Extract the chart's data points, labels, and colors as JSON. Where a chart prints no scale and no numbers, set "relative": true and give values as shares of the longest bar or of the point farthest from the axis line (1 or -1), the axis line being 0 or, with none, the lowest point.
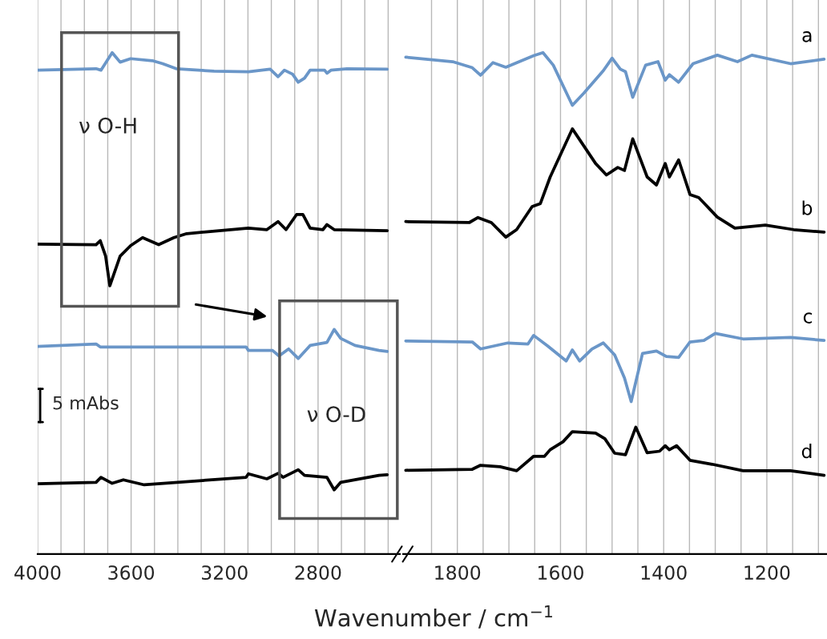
{
  "chart_data": [
    {
      "type": "line",
      "relative": true,
      "tick_labels": "x",
      "grid": "x",
      "xlabel": "Wavenumber / cm$^{−1}$",
      "xlim": [
        4000,
        2450
      ],
      "xticks": [
        4000,
        {
          "value": 3900,
          "label": null
        },
        {
          "value": 3800,
          "label": null
        },
        {
          "value": 3700,
          "label": null
        },
        3600,
        {
          "value": 3500,
          "label": null
        },
        {
          "value": 3400,
          "label": null
        },
        {
          "value": 3300,
          "label": null
        },
        3200,
        {
          "value": 3100,
          "label": null
        },
        {
          "value": 3000,
          "label": null
        },
        {
          "value": 2900,
          "label": null
        },
        2800,
        {
          "value": 2700,
          "label": null
        },
        {
          "value": 2600,
          "label": null
        },
        {
          "value": 2500,
          "label": null
        }
      ],
      "annotations": [
        "ν O-H",
        "ν O-D",
        "5 mAbs"
      ],
      "series": [
        {
          "color": "#6a96c8",
          "x": [
            4000,
            3750,
            3729,
            3681,
            3647,
            3602,
            3509,
            3465,
            3407,
            3245,
            3098,
            3005,
            2971,
            2944,
            2909,
            2885,
            2858,
            2834,
            2772,
            2762,
            2745,
            2676,
            2504
          ],
          "values": [
            0.965,
            0.968,
            0.965,
            1.0,
            0.981,
            0.988,
            0.984,
            0.978,
            0.968,
            0.963,
            0.962,
            0.967,
            0.952,
            0.965,
            0.957,
            0.941,
            0.949,
            0.965,
            0.965,
            0.959,
            0.965,
            0.968,
            0.967
          ]
        },
        {
          "color": "#000000",
          "x": [
            4000,
            3750,
            3732,
            3709,
            3691,
            3647,
            3602,
            3551,
            3482,
            3417,
            3362,
            3098,
            3019,
            2971,
            2937,
            2892,
            2865,
            2834,
            2779,
            2762,
            2731,
            2504
          ],
          "values": [
            0.618,
            0.617,
            0.625,
            0.594,
            0.535,
            0.594,
            0.615,
            0.631,
            0.617,
            0.631,
            0.639,
            0.65,
            0.647,
            0.663,
            0.647,
            0.677,
            0.677,
            0.65,
            0.647,
            0.657,
            0.647,
            0.645
          ]
        },
        {
          "color": "#6a96c8",
          "x": [
            4000,
            3750,
            3732,
            3630,
            3108,
            3098,
            2995,
            2967,
            2926,
            2885,
            2834,
            2762,
            2731,
            2703,
            2642,
            2539,
            2504
          ],
          "values": [
            0.414,
            0.419,
            0.413,
            0.413,
            0.413,
            0.406,
            0.406,
            0.395,
            0.409,
            0.39,
            0.416,
            0.422,
            0.448,
            0.43,
            0.416,
            0.406,
            0.404
          ]
        },
        {
          "color": "#000000",
          "x": [
            4000,
            3750,
            3729,
            3681,
            3633,
            3544,
            3108,
            3098,
            3019,
            2971,
            2950,
            2885,
            2858,
            2762,
            2731,
            2703,
            2539,
            2504
          ],
          "values": [
            0.14,
            0.143,
            0.153,
            0.141,
            0.148,
            0.138,
            0.153,
            0.16,
            0.15,
            0.161,
            0.153,
            0.168,
            0.157,
            0.153,
            0.128,
            0.143,
            0.157,
            0.158
          ]
        }
      ]
    },
    {
      "type": "line",
      "relative": true,
      "tick_labels": "x",
      "grid": "x",
      "xlim": [
        1905,
        1085
      ],
      "xticks": [
        {
          "value": 1850,
          "label": null
        },
        1800,
        {
          "value": 1750,
          "label": null
        },
        {
          "value": 1700,
          "label": null
        },
        {
          "value": 1650,
          "label": null
        },
        1600,
        {
          "value": 1550,
          "label": null
        },
        {
          "value": 1500,
          "label": null
        },
        {
          "value": 1450,
          "label": null
        },
        1400,
        {
          "value": 1350,
          "label": null
        },
        {
          "value": 1300,
          "label": null
        },
        {
          "value": 1250,
          "label": null
        },
        1200,
        {
          "value": 1150,
          "label": null
        },
        {
          "value": 1100,
          "label": null
        }
      ],
      "series": [
        {
          "name": "a",
          "color": "#6a96c8",
          "x": [
            1900,
            1809,
            1771,
            1755,
            1731,
            1706,
            1652,
            1634,
            1614,
            1577,
            1555,
            1517,
            1500,
            1484,
            1474,
            1460,
            1435,
            1411,
            1397,
            1389,
            1371,
            1343,
            1296,
            1257,
            1229,
            1154,
            1089
          ],
          "values": [
            0.991,
            0.982,
            0.97,
            0.955,
            0.98,
            0.971,
            0.994,
            1.0,
            0.975,
            0.895,
            0.919,
            0.964,
            0.989,
            0.967,
            0.962,
            0.911,
            0.975,
            0.982,
            0.945,
            0.956,
            0.941,
            0.978,
            0.995,
            0.982,
            0.995,
            0.978,
            0.987
          ]
        },
        {
          "name": "b",
          "color": "#000000",
          "x": [
            1900,
            1777,
            1760,
            1734,
            1706,
            1685,
            1655,
            1639,
            1620,
            1577,
            1532,
            1511,
            1489,
            1476,
            1460,
            1432,
            1414,
            1397,
            1389,
            1371,
            1349,
            1332,
            1296,
            1262,
            1203,
            1148,
            1089
          ],
          "values": [
            0.663,
            0.661,
            0.671,
            0.661,
            0.632,
            0.647,
            0.693,
            0.699,
            0.752,
            0.848,
            0.779,
            0.756,
            0.771,
            0.765,
            0.828,
            0.752,
            0.736,
            0.779,
            0.752,
            0.786,
            0.717,
            0.711,
            0.672,
            0.65,
            0.656,
            0.647,
            0.642
          ]
        },
        {
          "name": "c",
          "color": "#6a96c8",
          "x": [
            1900,
            1771,
            1755,
            1702,
            1663,
            1652,
            1625,
            1589,
            1577,
            1563,
            1539,
            1517,
            1495,
            1476,
            1463,
            1441,
            1414,
            1395,
            1371,
            1349,
            1322,
            1300,
            1246,
            1154,
            1089
          ],
          "values": [
            0.425,
            0.423,
            0.409,
            0.421,
            0.419,
            0.436,
            0.415,
            0.385,
            0.407,
            0.385,
            0.409,
            0.421,
            0.397,
            0.351,
            0.304,
            0.4,
            0.405,
            0.394,
            0.392,
            0.423,
            0.426,
            0.44,
            0.429,
            0.432,
            0.426
          ]
        },
        {
          "name": "d",
          "color": "#000000",
          "x": [
            1900,
            1771,
            1755,
            1717,
            1685,
            1652,
            1631,
            1620,
            1595,
            1577,
            1532,
            1514,
            1495,
            1474,
            1454,
            1432,
            1408,
            1397,
            1389,
            1375,
            1349,
            1306,
            1246,
            1154,
            1089
          ],
          "values": [
            0.167,
            0.169,
            0.177,
            0.174,
            0.166,
            0.195,
            0.195,
            0.208,
            0.224,
            0.244,
            0.241,
            0.23,
            0.201,
            0.198,
            0.253,
            0.202,
            0.205,
            0.216,
            0.208,
            0.216,
            0.187,
            0.179,
            0.166,
            0.166,
            0.157
          ]
        }
      ]
    }
  ]
}
